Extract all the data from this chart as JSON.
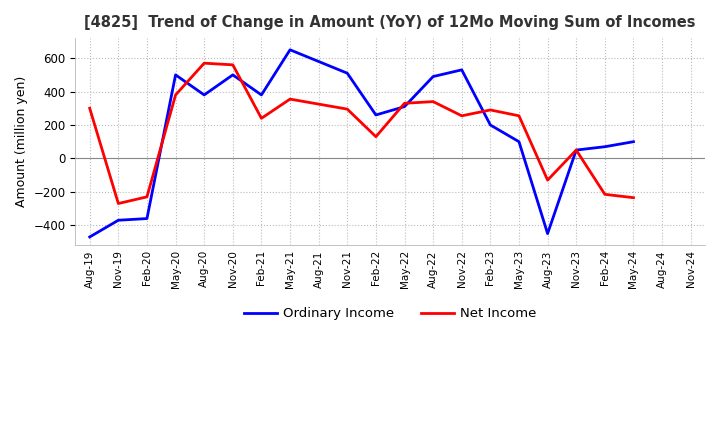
{
  "title": "[4825]  Trend of Change in Amount (YoY) of 12Mo Moving Sum of Incomes",
  "ylabel": "Amount (million yen)",
  "ylim": [
    -520,
    720
  ],
  "yticks": [
    -400,
    -200,
    0,
    200,
    400,
    600
  ],
  "x_labels": [
    "Aug-19",
    "Nov-19",
    "Feb-20",
    "May-20",
    "Aug-20",
    "Nov-20",
    "Feb-21",
    "May-21",
    "Aug-21",
    "Nov-21",
    "Feb-22",
    "May-22",
    "Aug-22",
    "Nov-22",
    "Feb-23",
    "May-23",
    "Aug-23",
    "Nov-23",
    "Feb-24",
    "May-24",
    "Aug-24",
    "Nov-24"
  ],
  "ordinary_income": [
    -470,
    -370,
    -360,
    500,
    380,
    500,
    380,
    650,
    580,
    510,
    260,
    310,
    490,
    530,
    200,
    100,
    -450,
    50,
    70,
    100
  ],
  "net_income": [
    300,
    -270,
    -230,
    380,
    570,
    560,
    240,
    355,
    325,
    295,
    130,
    330,
    340,
    255,
    290,
    255,
    -130,
    50,
    -215,
    -235
  ],
  "ordinary_income_full": [
    -470,
    -370,
    -360,
    500,
    380,
    500,
    380,
    650,
    580,
    510,
    260,
    310,
    490,
    530,
    200,
    100,
    -450,
    50,
    70,
    100,
    null,
    null
  ],
  "net_income_full": [
    300,
    -270,
    -230,
    380,
    570,
    560,
    240,
    355,
    325,
    295,
    130,
    330,
    340,
    255,
    290,
    255,
    -130,
    50,
    -215,
    -235,
    null,
    null
  ],
  "ordinary_color": "#0000ff",
  "net_color": "#ff0000",
  "grid_color": "#bbbbbb",
  "background_color": "#ffffff",
  "legend_labels": [
    "Ordinary Income",
    "Net Income"
  ]
}
